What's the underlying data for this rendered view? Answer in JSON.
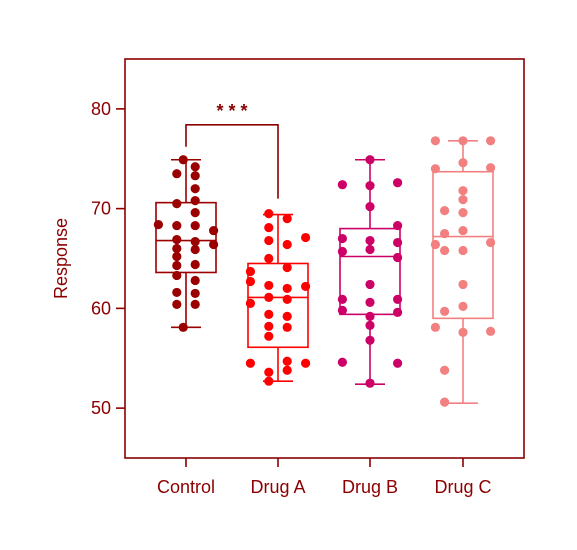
{
  "chart_data": {
    "type": "box",
    "title": "",
    "xlabel": "",
    "ylabel": "Response",
    "ylim": [
      45,
      85
    ],
    "yticks": [
      50,
      60,
      70,
      80
    ],
    "grid": false,
    "axis_color": "#8b0000",
    "categories": [
      "Control",
      "Drug A",
      "Drug B",
      "Drug C"
    ],
    "groups": [
      {
        "name": "Control",
        "color": "#9b0000",
        "box": {
          "whisker_low": 58.1,
          "q1": 63.6,
          "median": 66.8,
          "q3": 70.6,
          "whisker_high": 74.9
        },
        "points": [
          [
            -0.03,
            74.9
          ],
          [
            0.1,
            74.2
          ],
          [
            -0.1,
            73.5
          ],
          [
            0.1,
            73.3
          ],
          [
            0.1,
            72.0
          ],
          [
            0.1,
            70.8
          ],
          [
            -0.1,
            70.5
          ],
          [
            0.1,
            69.6
          ],
          [
            -0.3,
            68.4
          ],
          [
            -0.1,
            68.3
          ],
          [
            0.1,
            68.3
          ],
          [
            0.3,
            67.8
          ],
          [
            -0.1,
            66.9
          ],
          [
            0.1,
            66.7
          ],
          [
            0.3,
            66.4
          ],
          [
            -0.1,
            66.0
          ],
          [
            0.1,
            65.9
          ],
          [
            -0.1,
            65.2
          ],
          [
            0.1,
            64.4
          ],
          [
            -0.1,
            64.3
          ],
          [
            -0.1,
            63.3
          ],
          [
            0.1,
            62.8
          ],
          [
            -0.1,
            61.6
          ],
          [
            0.1,
            61.5
          ],
          [
            -0.1,
            60.4
          ],
          [
            0.1,
            60.4
          ],
          [
            -0.03,
            58.1
          ]
        ]
      },
      {
        "name": "Drug A",
        "color": "#ff0000",
        "box": {
          "whisker_low": 52.7,
          "q1": 56.1,
          "median": 61.1,
          "q3": 64.5,
          "whisker_high": 69.4
        },
        "points": [
          [
            -0.1,
            69.5
          ],
          [
            0.1,
            69.0
          ],
          [
            -0.1,
            68.1
          ],
          [
            -0.1,
            66.8
          ],
          [
            0.3,
            67.1
          ],
          [
            0.1,
            66.4
          ],
          [
            -0.1,
            65.0
          ],
          [
            0.1,
            64.1
          ],
          [
            -0.3,
            63.7
          ],
          [
            -0.3,
            62.7
          ],
          [
            -0.1,
            62.3
          ],
          [
            0.1,
            62.0
          ],
          [
            0.3,
            62.2
          ],
          [
            -0.1,
            61.1
          ],
          [
            0.1,
            60.9
          ],
          [
            -0.3,
            60.5
          ],
          [
            -0.1,
            59.4
          ],
          [
            0.1,
            59.2
          ],
          [
            -0.1,
            58.2
          ],
          [
            0.1,
            58.1
          ],
          [
            -0.1,
            57.2
          ],
          [
            -0.3,
            54.5
          ],
          [
            0.1,
            54.7
          ],
          [
            0.3,
            54.5
          ],
          [
            -0.1,
            53.6
          ],
          [
            0.1,
            53.8
          ],
          [
            -0.1,
            52.7
          ]
        ]
      },
      {
        "name": "Drug B",
        "color": "#cc0066",
        "box": {
          "whisker_low": 52.4,
          "q1": 59.4,
          "median": 65.2,
          "q3": 68.0,
          "whisker_high": 74.9
        },
        "points": [
          [
            0.0,
            74.9
          ],
          [
            -0.3,
            72.4
          ],
          [
            0.0,
            72.3
          ],
          [
            0.3,
            72.6
          ],
          [
            0.0,
            70.2
          ],
          [
            0.3,
            68.3
          ],
          [
            -0.3,
            67.0
          ],
          [
            0.0,
            66.8
          ],
          [
            0.3,
            66.6
          ],
          [
            -0.3,
            65.7
          ],
          [
            0.0,
            65.9
          ],
          [
            0.3,
            65.1
          ],
          [
            0.0,
            62.4
          ],
          [
            -0.3,
            60.9
          ],
          [
            0.0,
            60.6
          ],
          [
            0.3,
            60.9
          ],
          [
            -0.3,
            59.8
          ],
          [
            0.0,
            59.2
          ],
          [
            0.3,
            59.6
          ],
          [
            0.0,
            58.3
          ],
          [
            0.0,
            56.8
          ],
          [
            -0.3,
            54.6
          ],
          [
            0.3,
            54.5
          ],
          [
            0.0,
            52.5
          ]
        ]
      },
      {
        "name": "Drug C",
        "color": "#f28080",
        "box": {
          "whisker_low": 50.5,
          "q1": 59.0,
          "median": 67.2,
          "q3": 73.7,
          "whisker_high": 76.8
        },
        "points": [
          [
            -0.3,
            76.8
          ],
          [
            0.0,
            76.8
          ],
          [
            0.3,
            76.8
          ],
          [
            0.0,
            74.6
          ],
          [
            -0.3,
            74.0
          ],
          [
            0.3,
            74.1
          ],
          [
            0.0,
            71.8
          ],
          [
            0.0,
            70.9
          ],
          [
            -0.2,
            69.8
          ],
          [
            0.0,
            69.6
          ],
          [
            -0.2,
            67.5
          ],
          [
            0.0,
            67.8
          ],
          [
            -0.3,
            66.4
          ],
          [
            0.3,
            66.6
          ],
          [
            -0.2,
            65.8
          ],
          [
            0.0,
            65.8
          ],
          [
            0.0,
            62.4
          ],
          [
            0.0,
            60.2
          ],
          [
            -0.2,
            59.7
          ],
          [
            -0.3,
            58.1
          ],
          [
            0.3,
            57.7
          ],
          [
            0.0,
            57.6
          ],
          [
            -0.2,
            53.8
          ],
          [
            -0.2,
            50.6
          ]
        ]
      }
    ],
    "annotations": [
      {
        "type": "bracket",
        "from": "Control",
        "to": "Drug A",
        "y": 78.4,
        "left_end": 76.2,
        "right_end": 71.0,
        "text": "* * *",
        "color": "#8b0000"
      }
    ]
  }
}
